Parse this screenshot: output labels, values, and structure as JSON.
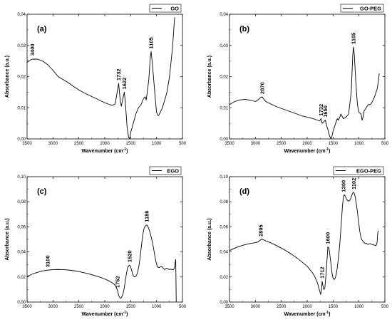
{
  "chart_data": [
    {
      "type": "line",
      "panel_label": "(a)",
      "legend": "GO",
      "xlabel": "Wavenumber (cm",
      "xlabel_sup": "-1",
      "xlabel_end": ")",
      "ylabel": "Absorbance (a.u.)",
      "xlim": [
        3500,
        500
      ],
      "ylim": [
        0,
        0.04
      ],
      "x_ticks": [
        3500,
        3000,
        2500,
        2000,
        1500,
        1000,
        500
      ],
      "y_ticks": [
        0,
        0.01,
        0.02,
        0.03,
        0.04
      ],
      "y_tick_labels": [
        "0,00",
        "0,01",
        "0,02",
        "0,03",
        "0,04"
      ],
      "peaks": [
        {
          "label": "3400",
          "x": 3400,
          "y": 0.0258
        },
        {
          "label": "1732",
          "x": 1732,
          "y": 0.0178
        },
        {
          "label": "1622",
          "x": 1622,
          "y": 0.015
        },
        {
          "label": "1105",
          "x": 1105,
          "y": 0.028
        }
      ],
      "series": [
        {
          "x": [
            3500,
            3450,
            3400,
            3350,
            3300,
            3200,
            3100,
            3000,
            2900,
            2800,
            2700,
            2600,
            2500,
            2400,
            2300,
            2200,
            2100,
            2000,
            1900,
            1850,
            1800,
            1760,
            1732,
            1700,
            1680,
            1650,
            1622,
            1600,
            1570,
            1540,
            1520,
            1500,
            1450,
            1400,
            1350,
            1300,
            1250,
            1220,
            1200,
            1180,
            1150,
            1120,
            1105,
            1080,
            1050,
            1020,
            1000,
            970,
            950,
            900,
            850,
            800,
            750,
            700,
            680,
            660,
            650
          ],
          "y": [
            0.0245,
            0.0252,
            0.0256,
            0.0256,
            0.0256,
            0.025,
            0.0238,
            0.022,
            0.02,
            0.019,
            0.018,
            0.0168,
            0.0157,
            0.0148,
            0.014,
            0.0132,
            0.0124,
            0.0116,
            0.011,
            0.0108,
            0.0112,
            0.015,
            0.0178,
            0.012,
            0.0105,
            0.013,
            0.015,
            0.011,
            0.004,
            0.0005,
            0.0,
            0.002,
            0.005,
            0.008,
            0.01,
            0.011,
            0.013,
            0.0135,
            0.0125,
            0.015,
            0.019,
            0.0265,
            0.028,
            0.024,
            0.018,
            0.012,
            0.0085,
            0.0075,
            0.0078,
            0.0095,
            0.012,
            0.015,
            0.02,
            0.028,
            0.032,
            0.037,
            0.039
          ]
        }
      ]
    },
    {
      "type": "line",
      "panel_label": "(b)",
      "legend": "GO-PEG",
      "xlabel": "Wavenumber (cm",
      "xlabel_sup": "-1",
      "xlabel_end": ")",
      "ylabel": "Absorbance (a.u.)",
      "xlim": [
        3500,
        500
      ],
      "ylim": [
        0,
        0.04
      ],
      "x_ticks": [
        3500,
        3000,
        2500,
        2000,
        1500,
        1000,
        500
      ],
      "y_ticks": [
        0,
        0.01,
        0.02,
        0.03,
        0.04
      ],
      "y_tick_labels": [
        "0,00",
        "0,01",
        "0,02",
        "0,03",
        "0,04"
      ],
      "peaks": [
        {
          "label": "2870",
          "x": 2870,
          "y": 0.0135
        },
        {
          "label": "1732",
          "x": 1732,
          "y": 0.0065
        },
        {
          "label": "1650",
          "x": 1650,
          "y": 0.006
        },
        {
          "label": "1105",
          "x": 1105,
          "y": 0.0295
        }
      ],
      "series": [
        {
          "x": [
            3500,
            3400,
            3300,
            3200,
            3100,
            3000,
            2950,
            2900,
            2870,
            2840,
            2800,
            2700,
            2600,
            2500,
            2400,
            2300,
            2200,
            2100,
            2000,
            1900,
            1800,
            1760,
            1732,
            1710,
            1680,
            1650,
            1620,
            1600,
            1570,
            1540,
            1520,
            1500,
            1470,
            1450,
            1420,
            1400,
            1370,
            1350,
            1300,
            1250,
            1200,
            1150,
            1120,
            1105,
            1090,
            1060,
            1030,
            1000,
            960,
            940,
            920,
            900,
            860,
            820,
            780,
            740,
            700,
            650,
            620,
            610
          ],
          "y": [
            0.011,
            0.012,
            0.0125,
            0.0127,
            0.0124,
            0.012,
            0.0125,
            0.0133,
            0.0135,
            0.0128,
            0.012,
            0.0112,
            0.0104,
            0.0098,
            0.0092,
            0.0086,
            0.008,
            0.0074,
            0.007,
            0.0066,
            0.006,
            0.0058,
            0.0065,
            0.005,
            0.0055,
            0.006,
            0.004,
            0.003,
            0.001,
            0.0,
            0.001,
            0.0025,
            0.004,
            0.005,
            0.0065,
            0.006,
            0.007,
            0.008,
            0.0065,
            0.007,
            0.008,
            0.015,
            0.027,
            0.0295,
            0.027,
            0.018,
            0.011,
            0.0085,
            0.008,
            0.006,
            0.007,
            0.009,
            0.01,
            0.011,
            0.011,
            0.012,
            0.0135,
            0.016,
            0.019,
            0.021
          ]
        }
      ]
    },
    {
      "type": "line",
      "panel_label": "(c)",
      "legend": "EGO",
      "xlabel": "Wavenumber (cm",
      "xlabel_sup": "-1",
      "xlabel_end": ")",
      "ylabel": "Absorbance (a.u.)",
      "xlim": [
        3500,
        500
      ],
      "ylim": [
        0,
        0.1
      ],
      "x_ticks": [
        3500,
        3000,
        2500,
        2000,
        1500,
        1000,
        500
      ],
      "y_ticks": [
        0,
        0.02,
        0.04,
        0.06,
        0.08,
        0.1
      ],
      "y_tick_labels": [
        "0,00",
        "0,02",
        "0,04",
        "0,06",
        "0,08",
        "0,10"
      ],
      "peaks": [
        {
          "label": "3100",
          "x": 3100,
          "y": 0.0255
        },
        {
          "label": "1752",
          "x": 1752,
          "y": 0.009
        },
        {
          "label": "1520",
          "x": 1520,
          "y": 0.0295
        },
        {
          "label": "1186",
          "x": 1186,
          "y": 0.0615
        }
      ],
      "series": [
        {
          "x": [
            3500,
            3400,
            3300,
            3200,
            3100,
            3000,
            2900,
            2800,
            2700,
            2600,
            2500,
            2400,
            2300,
            2200,
            2100,
            2000,
            1900,
            1850,
            1800,
            1770,
            1752,
            1730,
            1700,
            1680,
            1650,
            1620,
            1600,
            1580,
            1560,
            1540,
            1520,
            1500,
            1480,
            1460,
            1440,
            1420,
            1400,
            1380,
            1360,
            1340,
            1320,
            1300,
            1280,
            1260,
            1240,
            1220,
            1200,
            1186,
            1170,
            1150,
            1130,
            1110,
            1090,
            1070,
            1050,
            1030,
            1010,
            990,
            970,
            950,
            930,
            910,
            890,
            870,
            850,
            830,
            810,
            790,
            770,
            750,
            730,
            710,
            690,
            670,
            650,
            640,
            630,
            620
          ],
          "y": [
            0.0205,
            0.0223,
            0.0237,
            0.0248,
            0.0255,
            0.0259,
            0.026,
            0.0259,
            0.0255,
            0.025,
            0.0243,
            0.0234,
            0.0224,
            0.0212,
            0.0199,
            0.0184,
            0.0165,
            0.0152,
            0.0135,
            0.011,
            0.009,
            0.005,
            0.003,
            0.0035,
            0.006,
            0.012,
            0.018,
            0.023,
            0.027,
            0.029,
            0.0295,
            0.028,
            0.025,
            0.022,
            0.0205,
            0.02,
            0.0205,
            0.022,
            0.025,
            0.029,
            0.035,
            0.042,
            0.049,
            0.055,
            0.059,
            0.0605,
            0.0612,
            0.0615,
            0.0605,
            0.0585,
            0.056,
            0.053,
            0.0495,
            0.0455,
            0.041,
            0.036,
            0.032,
            0.029,
            0.0275,
            0.0275,
            0.028,
            0.0285,
            0.028,
            0.027,
            0.026,
            0.0262,
            0.027,
            0.0268,
            0.0262,
            0.026,
            0.0262,
            0.026,
            0.0258,
            0.026,
            0.028,
            0.032,
            0.034,
            0.0
          ]
        }
      ]
    },
    {
      "type": "line",
      "panel_label": "(d)",
      "legend": "EGO-PEG",
      "xlabel": "Wavenumber (cm",
      "xlabel_sup": "-1",
      "xlabel_end": ")",
      "ylabel": "Absorbance (a.u.)",
      "xlim": [
        3500,
        500
      ],
      "ylim": [
        0,
        0.1
      ],
      "x_ticks": [
        3500,
        3000,
        2500,
        2000,
        1500,
        1000,
        500
      ],
      "y_ticks": [
        0,
        0.02,
        0.04,
        0.06,
        0.08,
        0.1
      ],
      "y_tick_labels": [
        "0,00",
        "0,02",
        "0,04",
        "0,06",
        "0,08",
        "0,10"
      ],
      "peaks": [
        {
          "label": "2895",
          "x": 2895,
          "y": 0.05
        },
        {
          "label": "1712",
          "x": 1712,
          "y": 0.0165
        },
        {
          "label": "1600",
          "x": 1600,
          "y": 0.044
        },
        {
          "label": "1300",
          "x": 1300,
          "y": 0.0855
        },
        {
          "label": "1102",
          "x": 1102,
          "y": 0.0875
        }
      ],
      "series": [
        {
          "x": [
            3500,
            3400,
            3300,
            3200,
            3100,
            3000,
            2950,
            2900,
            2895,
            2870,
            2840,
            2800,
            2700,
            2600,
            2500,
            2400,
            2300,
            2200,
            2100,
            2000,
            1900,
            1850,
            1800,
            1760,
            1740,
            1720,
            1712,
            1700,
            1680,
            1660,
            1640,
            1620,
            1600,
            1580,
            1560,
            1540,
            1520,
            1500,
            1480,
            1460,
            1440,
            1420,
            1400,
            1380,
            1360,
            1340,
            1320,
            1300,
            1280,
            1260,
            1240,
            1220,
            1200,
            1180,
            1160,
            1140,
            1120,
            1102,
            1085,
            1070,
            1050,
            1030,
            1010,
            990,
            970,
            950,
            930,
            910,
            890,
            870,
            850,
            830,
            810,
            790,
            770,
            750,
            730,
            710,
            690,
            670,
            650,
            640,
            630
          ],
          "y": [
            0.041,
            0.043,
            0.0445,
            0.0458,
            0.0467,
            0.0474,
            0.048,
            0.0495,
            0.05,
            0.05,
            0.0496,
            0.0488,
            0.0472,
            0.0452,
            0.043,
            0.0407,
            0.0381,
            0.0352,
            0.032,
            0.0285,
            0.0235,
            0.02,
            0.015,
            0.009,
            0.006,
            0.011,
            0.0165,
            0.014,
            0.01,
            0.011,
            0.02,
            0.032,
            0.044,
            0.043,
            0.037,
            0.03,
            0.023,
            0.019,
            0.018,
            0.019,
            0.022,
            0.027,
            0.034,
            0.042,
            0.052,
            0.064,
            0.076,
            0.0845,
            0.0855,
            0.084,
            0.082,
            0.081,
            0.0805,
            0.081,
            0.0825,
            0.085,
            0.087,
            0.0875,
            0.086,
            0.083,
            0.078,
            0.072,
            0.065,
            0.058,
            0.053,
            0.05,
            0.049,
            0.048,
            0.047,
            0.047,
            0.0465,
            0.046,
            0.0462,
            0.0465,
            0.0463,
            0.046,
            0.0458,
            0.0455,
            0.0452,
            0.045,
            0.0475,
            0.054,
            0.057
          ]
        }
      ]
    }
  ]
}
